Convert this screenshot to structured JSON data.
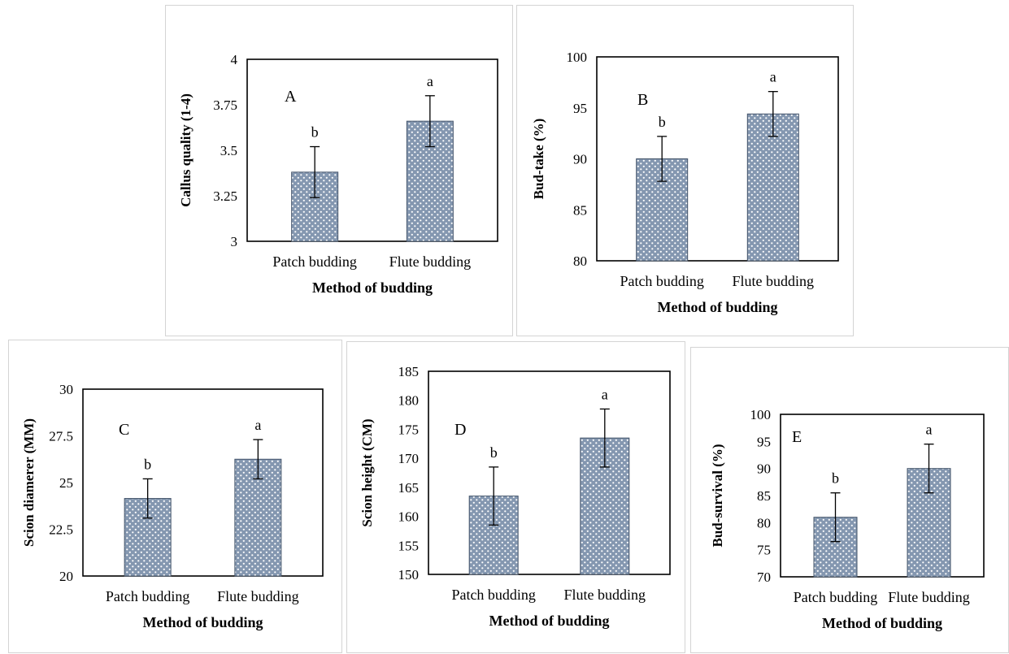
{
  "x_axis_title": "Method of budding",
  "colors": {
    "bar_fill": "#8497b0",
    "bar_dot": "#ffffff",
    "bar_stroke": "#44546a",
    "axis": "#000000",
    "error_bar": "#000000"
  },
  "chart_data": [
    {
      "type": "bar",
      "panel_letter": "A",
      "categories": [
        "Patch budding",
        "Flute budding"
      ],
      "values": [
        3.38,
        3.66
      ],
      "errors": [
        0.14,
        0.14
      ],
      "significance": [
        "b",
        "a"
      ],
      "ylabel": "Callus quality (1-4)",
      "xlabel": "Method of budding",
      "ylim": [
        3,
        4
      ],
      "yticks": [
        3,
        3.25,
        3.5,
        3.75,
        4
      ],
      "ytick_labels": [
        "3",
        "3.25",
        "3.5",
        "3.75",
        "4"
      ],
      "grid": false
    },
    {
      "type": "bar",
      "panel_letter": "B",
      "categories": [
        "Patch budding",
        "Flute budding"
      ],
      "values": [
        90.0,
        94.4
      ],
      "errors": [
        2.2,
        2.2
      ],
      "significance": [
        "b",
        "a"
      ],
      "ylabel": "Bud-take (%)",
      "xlabel": "Method of budding",
      "ylim": [
        80,
        100
      ],
      "yticks": [
        80,
        85,
        90,
        95,
        100
      ],
      "ytick_labels": [
        "80",
        "85",
        "90",
        "95",
        "100"
      ],
      "grid": false
    },
    {
      "type": "bar",
      "panel_letter": "C",
      "categories": [
        "Patch budding",
        "Flute budding"
      ],
      "values": [
        24.15,
        26.25
      ],
      "errors": [
        1.05,
        1.05
      ],
      "significance": [
        "b",
        "a"
      ],
      "ylabel": "Scion diamerer (MM)",
      "xlabel": "Method of budding",
      "ylim": [
        20,
        30
      ],
      "yticks": [
        20,
        22.5,
        25,
        27.5,
        30
      ],
      "ytick_labels": [
        "20",
        "22.5",
        "25",
        "27.5",
        "30"
      ],
      "grid": false
    },
    {
      "type": "bar",
      "panel_letter": "D",
      "categories": [
        "Patch budding",
        "Flute budding"
      ],
      "values": [
        163.5,
        173.5
      ],
      "errors": [
        5.0,
        5.0
      ],
      "significance": [
        "b",
        "a"
      ],
      "ylabel": "Scion height (CM)",
      "xlabel": "Method of budding",
      "ylim": [
        150,
        185
      ],
      "yticks": [
        150,
        155,
        160,
        165,
        170,
        175,
        180,
        185
      ],
      "ytick_labels": [
        "150",
        "155",
        "160",
        "165",
        "170",
        "175",
        "180",
        "185"
      ],
      "grid": false
    },
    {
      "type": "bar",
      "panel_letter": "E",
      "categories": [
        "Patch budding",
        "Flute budding"
      ],
      "values": [
        81.0,
        90.0
      ],
      "errors": [
        4.5,
        4.5
      ],
      "significance": [
        "b",
        "a"
      ],
      "ylabel": "Bud-survival (%)",
      "xlabel": "Method of budding",
      "ylim": [
        70,
        100
      ],
      "yticks": [
        70,
        75,
        80,
        85,
        90,
        95,
        100
      ],
      "ytick_labels": [
        "70",
        "75",
        "80",
        "85",
        "90",
        "95",
        "100"
      ],
      "grid": false
    }
  ]
}
